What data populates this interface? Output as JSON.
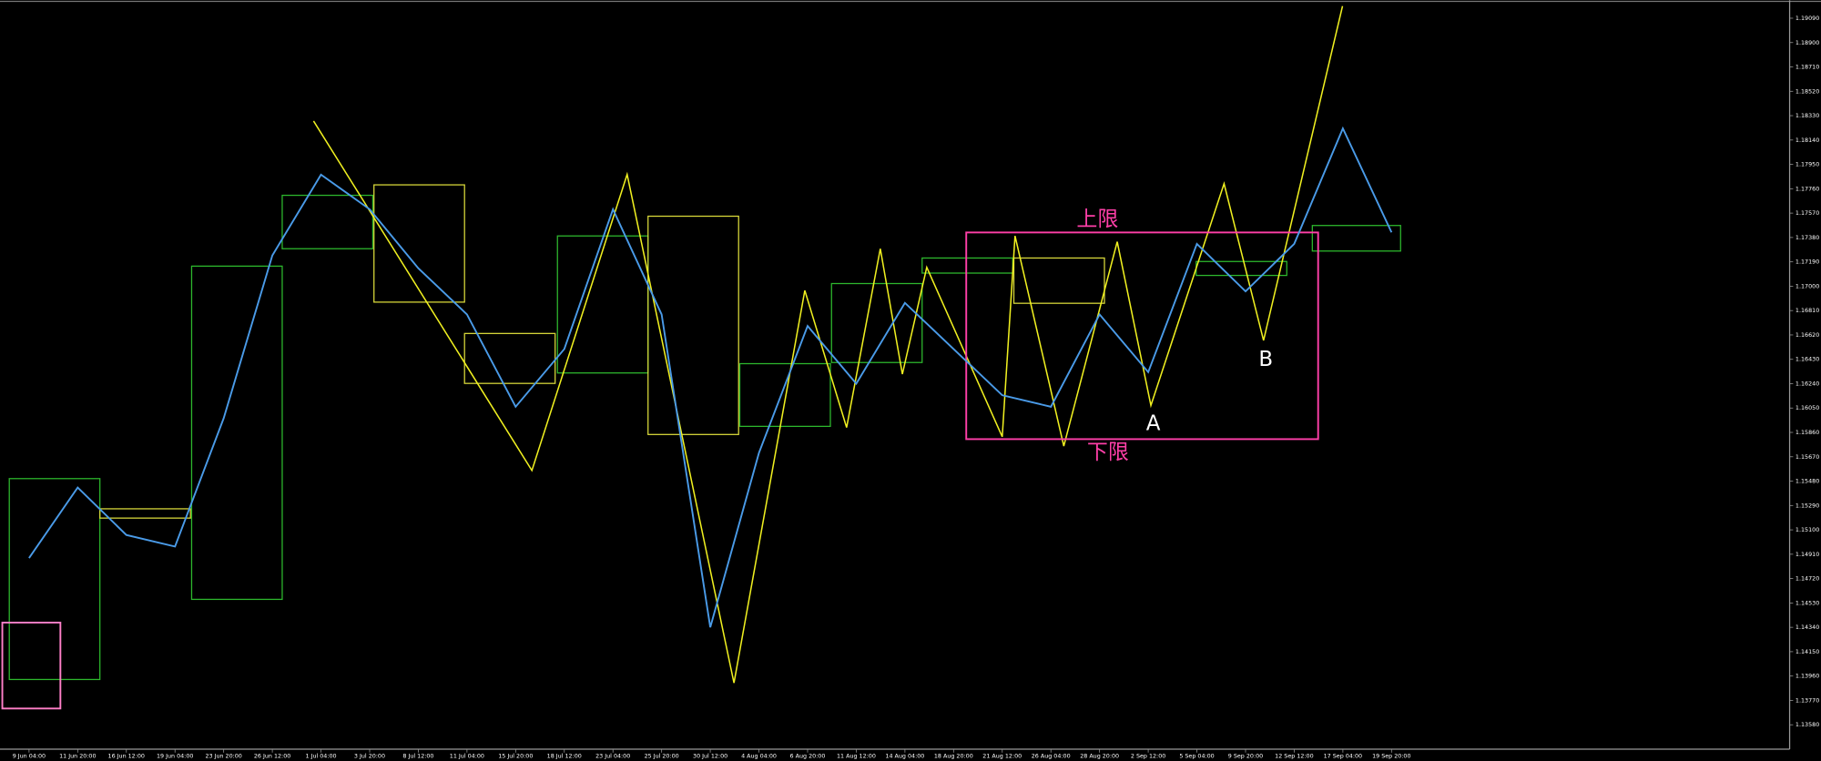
{
  "chart_data": {
    "type": "line",
    "categories": [
      "9 Jun 04:00",
      "11 Jun 20:00",
      "16 Jun 12:00",
      "19 Jun 04:00",
      "23 Jun 20:00",
      "26 Jun 12:00",
      "1 Jul 04:00",
      "3 Jul 20:00",
      "8 Jul 12:00",
      "11 Jul 04:00",
      "15 Jul 20:00",
      "18 Jul 12:00",
      "23 Jul 04:00",
      "25 Jul 20:00",
      "30 Jul 12:00",
      "4 Aug 04:00",
      "6 Aug 20:00",
      "11 Aug 12:00",
      "14 Aug 04:00",
      "18 Aug 20:00",
      "21 Aug 12:00",
      "26 Aug 04:00",
      "28 Aug 20:00",
      "2 Sep 12:00",
      "5 Sep 04:00",
      "9 Sep 20:00",
      "12 Sep 12:00",
      "17 Sep 04:00",
      "19 Sep 20:00"
    ],
    "series": [
      {
        "color": "#4a9be8",
        "values": [
          1.1488,
          1.1543,
          1.1506,
          1.1497,
          1.1597,
          1.1724,
          1.1787,
          1.176,
          1.1714,
          1.1678,
          1.1606,
          1.1651,
          1.176,
          1.1678,
          1.1434,
          1.157,
          1.1669,
          1.1624,
          1.1687,
          1.1651,
          1.1615,
          1.1606,
          1.1678,
          1.1633,
          1.1733,
          1.1696,
          1.1733,
          1.1823,
          1.1742
        ]
      }
    ],
    "ylim": [
      1.1339,
      1.1923
    ],
    "yticks": [
      {
        "value": 1.1909,
        "label": "1.19090"
      },
      {
        "value": 1.189,
        "label": "1.18900"
      },
      {
        "value": 1.1871,
        "label": "1.18710"
      },
      {
        "value": 1.1852,
        "label": "1.18520"
      },
      {
        "value": 1.1833,
        "label": "1.18330"
      },
      {
        "value": 1.1814,
        "label": "1.18140"
      },
      {
        "value": 1.1795,
        "label": "1.17950"
      },
      {
        "value": 1.1776,
        "label": "1.17760"
      },
      {
        "value": 1.1757,
        "label": "1.17570"
      },
      {
        "value": 1.1738,
        "label": "1.17380"
      },
      {
        "value": 1.1719,
        "label": "1.17190"
      },
      {
        "value": 1.17,
        "label": "1.17000"
      },
      {
        "value": 1.1681,
        "label": "1.16810"
      },
      {
        "value": 1.1662,
        "label": "1.16620"
      },
      {
        "value": 1.1643,
        "label": "1.16430"
      },
      {
        "value": 1.1624,
        "label": "1.16240"
      },
      {
        "value": 1.1605,
        "label": "1.16050"
      },
      {
        "value": 1.1586,
        "label": "1.15860"
      },
      {
        "value": 1.1567,
        "label": "1.15670"
      },
      {
        "value": 1.1548,
        "label": "1.15480"
      },
      {
        "value": 1.1529,
        "label": "1.15290"
      },
      {
        "value": 1.151,
        "label": "1.15100"
      },
      {
        "value": 1.1491,
        "label": "1.14910"
      },
      {
        "value": 1.1472,
        "label": "1.14720"
      },
      {
        "value": 1.1453,
        "label": "1.14530"
      },
      {
        "value": 1.1434,
        "label": "1.14340"
      },
      {
        "value": 1.1415,
        "label": "1.14150"
      },
      {
        "value": 1.1396,
        "label": "1.13960"
      },
      {
        "value": 1.1377,
        "label": "1.13770"
      },
      {
        "value": 1.1358,
        "label": "1.13580"
      }
    ],
    "annotations": [
      "上限",
      "下限",
      "A",
      "B"
    ]
  }
}
